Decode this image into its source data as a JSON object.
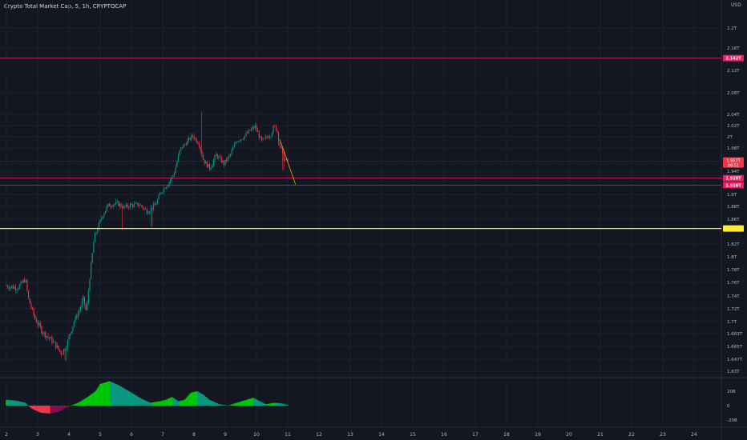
{
  "header": {
    "title": "Crypto Total Market Cap, 5, 1h, CRYPTOCAP",
    "currency": "USD"
  },
  "chart_data": {
    "type": "candlestick",
    "title": "Crypto Total Market Cap, 5, 1h, CRYPTOCAP",
    "currency": "USD",
    "y_tick_labels": [
      "2.2T",
      "2.16T",
      "2.12T",
      "2.08T",
      "2.04T",
      "2.02T",
      "2T",
      "1.98T",
      "1.94T",
      "1.9T",
      "1.88T",
      "1.86T",
      "1.82T",
      "1.8T",
      "1.78T",
      "1.76T",
      "1.74T",
      "1.72T",
      "1.7T",
      "1.683T",
      "1.665T",
      "1.647T",
      "1.63T"
    ],
    "y_tick_values": [
      2.2,
      2.16,
      2.12,
      2.08,
      2.04,
      2.02,
      2.0,
      1.98,
      1.94,
      1.9,
      1.88,
      1.86,
      1.82,
      1.8,
      1.78,
      1.76,
      1.74,
      1.72,
      1.7,
      1.683,
      1.665,
      1.647,
      1.63
    ],
    "x_tick_labels": [
      "2",
      "3",
      "4",
      "5",
      "6",
      "7",
      "8",
      "9",
      "10",
      "11",
      "12",
      "13",
      "14",
      "15",
      "16",
      "17",
      "18",
      "19",
      "20",
      "21",
      "22",
      "23",
      "24"
    ],
    "x_tick_days": [
      2,
      3,
      4,
      5,
      6,
      7,
      8,
      9,
      10,
      11,
      12,
      13,
      14,
      15,
      16,
      17,
      18,
      19,
      20,
      21,
      22,
      23,
      24
    ],
    "horizontal_levels": [
      {
        "label": "2.142T",
        "value": 2.142,
        "color": "#e91e63"
      },
      {
        "label": "1.928T",
        "value": 1.928,
        "color": "#e91e63"
      },
      {
        "label": "1.916T",
        "value": 1.916,
        "color": "#e91e63"
      },
      {
        "label": "",
        "value": 1.845,
        "color": "#ffeb3b"
      }
    ],
    "last_price": {
      "label": "1.957T",
      "countdown": "08:51",
      "value": 1.957,
      "color": "#f23645"
    },
    "projection": {
      "from_day": 10.75,
      "from_value": 1.995,
      "to_day": 11.25,
      "to_value": 1.917
    },
    "oscillator": {
      "y_tick_labels": [
        "20B",
        "0",
        "-20B"
      ],
      "y_tick_values": [
        20,
        0,
        -20
      ],
      "colors": {
        "positive": "#089981",
        "positive_strong": "#00c805",
        "negative": "#880e4f",
        "negative_strong": "#f23645"
      }
    }
  }
}
